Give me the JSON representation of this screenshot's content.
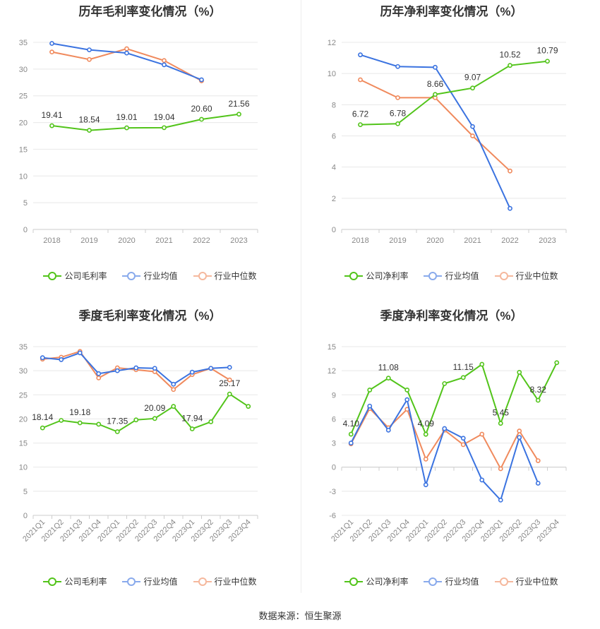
{
  "footer": "数据来源：恒生聚源",
  "legend_labels": {
    "gross_company": "公司毛利率",
    "net_company": "公司净利率",
    "industry_avg": "行业均值",
    "industry_median": "行业中位数"
  },
  "colors": {
    "company": "#52c41a",
    "industry_avg": "#3b73e0",
    "industry_median": "#f08a5d",
    "grid": "#e8e8e8",
    "axis_text": "#888888"
  },
  "chart_data": [
    {
      "id": "annual-gross",
      "type": "line",
      "title": "历年毛利率变化情况（%）",
      "categories": [
        "2018",
        "2019",
        "2020",
        "2021",
        "2022",
        "2023"
      ],
      "ylim": [
        0,
        35
      ],
      "yticks": [
        0,
        5,
        10,
        15,
        20,
        25,
        30,
        35
      ],
      "x_labels_rotated": false,
      "series": [
        {
          "name": "公司毛利率",
          "color_key": "company",
          "values": [
            19.41,
            18.54,
            19.01,
            19.04,
            20.6,
            21.56
          ],
          "labels": [
            "19.41",
            "18.54",
            "19.01",
            "19.04",
            "20.60",
            "21.56"
          ]
        },
        {
          "name": "行业均值",
          "color_key": "industry_avg",
          "values": [
            34.8,
            33.6,
            33.0,
            30.8,
            28.0,
            null
          ]
        },
        {
          "name": "行业中位数",
          "color_key": "industry_median",
          "values": [
            33.2,
            31.8,
            33.8,
            31.6,
            27.8,
            null
          ]
        }
      ]
    },
    {
      "id": "annual-net",
      "type": "line",
      "title": "历年净利率变化情况（%）",
      "categories": [
        "2018",
        "2019",
        "2020",
        "2021",
        "2022",
        "2023"
      ],
      "ylim": [
        0,
        12
      ],
      "yticks": [
        0,
        2,
        4,
        6,
        8,
        10,
        12
      ],
      "x_labels_rotated": false,
      "series": [
        {
          "name": "公司净利率",
          "color_key": "company",
          "values": [
            6.72,
            6.78,
            8.66,
            9.07,
            10.52,
            10.79
          ],
          "labels": [
            "6.72",
            "6.78",
            "8.66",
            "9.07",
            "10.52",
            "10.79"
          ]
        },
        {
          "name": "行业均值",
          "color_key": "industry_avg",
          "values": [
            11.2,
            10.45,
            10.4,
            6.6,
            1.35,
            null
          ]
        },
        {
          "name": "行业中位数",
          "color_key": "industry_median",
          "values": [
            9.6,
            8.45,
            8.45,
            6.0,
            3.75,
            null
          ]
        }
      ]
    },
    {
      "id": "quarterly-gross",
      "type": "line",
      "title": "季度毛利率变化情况（%）",
      "categories": [
        "2021Q1",
        "2021Q2",
        "2021Q3",
        "2021Q4",
        "2022Q1",
        "2022Q2",
        "2022Q3",
        "2022Q4",
        "2023Q1",
        "2023Q2",
        "2023Q3",
        "2023Q4"
      ],
      "ylim": [
        0,
        35
      ],
      "yticks": [
        0,
        5,
        10,
        15,
        20,
        25,
        30,
        35
      ],
      "x_labels_rotated": true,
      "series": [
        {
          "name": "公司毛利率",
          "color_key": "company",
          "values": [
            18.14,
            19.7,
            19.18,
            18.9,
            17.35,
            19.8,
            20.09,
            22.6,
            17.94,
            19.4,
            25.17,
            22.6
          ],
          "labels": [
            "18.14",
            "",
            "19.18",
            "",
            "17.35",
            "",
            "20.09",
            "",
            "17.94",
            "",
            "25.17",
            ""
          ]
        },
        {
          "name": "行业均值",
          "color_key": "industry_avg",
          "values": [
            32.7,
            32.3,
            33.7,
            29.4,
            30.0,
            30.6,
            30.5,
            27.2,
            29.7,
            30.5,
            30.7,
            null
          ]
        },
        {
          "name": "行业中位数",
          "color_key": "industry_median",
          "values": [
            32.4,
            32.8,
            34.0,
            28.5,
            30.6,
            30.2,
            29.8,
            26.1,
            29.2,
            30.5,
            28.1,
            null
          ]
        }
      ]
    },
    {
      "id": "quarterly-net",
      "type": "line",
      "title": "季度净利率变化情况（%）",
      "categories": [
        "2021Q1",
        "2021Q2",
        "2021Q3",
        "2021Q4",
        "2022Q1",
        "2022Q2",
        "2022Q3",
        "2022Q4",
        "2023Q1",
        "2023Q2",
        "2023Q3",
        "2023Q4"
      ],
      "ylim": [
        -6,
        15
      ],
      "yticks": [
        -6,
        -3,
        0,
        3,
        6,
        9,
        12,
        15
      ],
      "x_labels_rotated": true,
      "series": [
        {
          "name": "公司净利率",
          "color_key": "company",
          "values": [
            4.1,
            9.6,
            11.08,
            9.6,
            4.09,
            10.4,
            11.15,
            12.8,
            5.45,
            11.8,
            8.32,
            13.0
          ],
          "labels": [
            "4.10",
            "",
            "11.08",
            "",
            "4.09",
            "",
            "11.15",
            "",
            "5.45",
            "",
            "8.32",
            ""
          ]
        },
        {
          "name": "行业均值",
          "color_key": "industry_avg",
          "values": [
            3.0,
            7.6,
            4.6,
            8.4,
            -2.2,
            4.8,
            3.6,
            -1.6,
            -4.1,
            3.7,
            -2.0,
            null
          ]
        },
        {
          "name": "行业中位数",
          "color_key": "industry_median",
          "values": [
            2.9,
            7.3,
            4.9,
            7.2,
            1.0,
            4.6,
            2.8,
            4.1,
            -0.2,
            4.5,
            0.8,
            null
          ]
        }
      ]
    }
  ]
}
